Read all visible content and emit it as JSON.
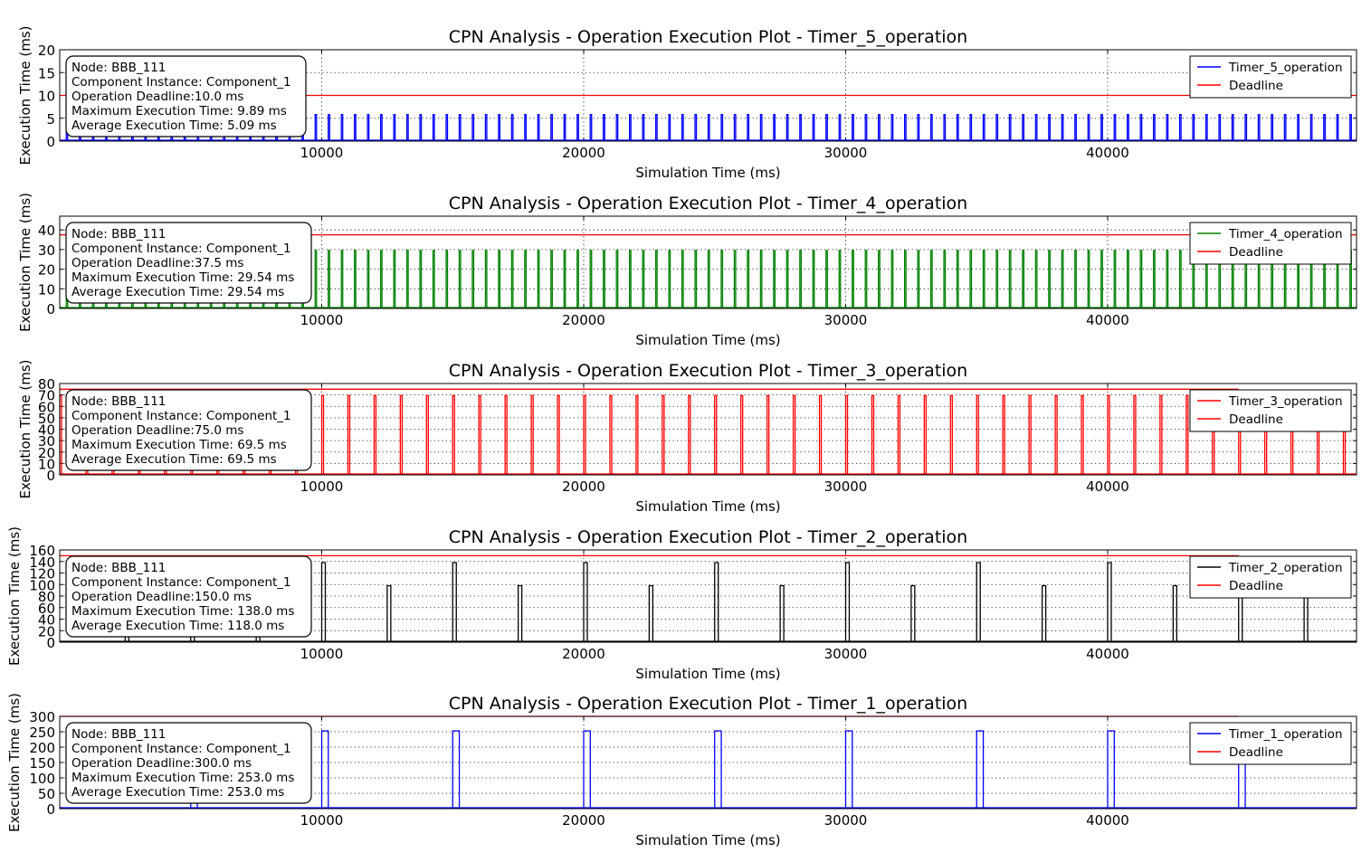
{
  "chart_data": [
    {
      "type": "line",
      "title": "CPN Analysis - Operation Execution Plot - Timer_5_operation",
      "xlabel": "Simulation Time (ms)",
      "ylabel": "Execution Time (ms)",
      "xlim": [
        0,
        49500
      ],
      "ylim": [
        0,
        20
      ],
      "yticks": [
        "0",
        "5",
        "10",
        "15",
        "20"
      ],
      "xticks": [
        "10000",
        "20000",
        "30000",
        "40000"
      ],
      "grid": true,
      "legend_position": "top-right",
      "color": "#0000ff",
      "pulse": {
        "start": 250,
        "period": 500,
        "width": 20,
        "value": 5.8,
        "peak_every": 5000,
        "peak_offset": 10000,
        "peak_value": 9.89
      },
      "deadline": 10.0,
      "deadline_color": "#ff0000",
      "series": [
        {
          "name": "Timer_5_operation",
          "color": "#0000ff"
        },
        {
          "name": "Deadline",
          "color": "#ff0000"
        }
      ],
      "info": [
        "Node: BBB_111",
        "Component Instance: Component_1",
        "Operation Deadline:10.0 ms",
        "Maximum Execution Time: 9.89 ms",
        "Average Execution Time: 5.09 ms"
      ]
    },
    {
      "type": "line",
      "title": "CPN Analysis - Operation Execution Plot - Timer_4_operation",
      "xlabel": "Simulation Time (ms)",
      "ylabel": "Execution Time (ms)",
      "xlim": [
        0,
        49500
      ],
      "ylim": [
        0,
        47
      ],
      "yticks": [
        "0",
        "10",
        "20",
        "30",
        "40"
      ],
      "xticks": [
        "10000",
        "20000",
        "30000",
        "40000"
      ],
      "grid": true,
      "legend_position": "top-right",
      "color": "#008000",
      "pulse": {
        "start": 250,
        "period": 500,
        "width": 30,
        "value": 29.54
      },
      "deadline": 37.5,
      "deadline_color": "#ff0000",
      "series": [
        {
          "name": "Timer_4_operation",
          "color": "#008000"
        },
        {
          "name": "Deadline",
          "color": "#ff0000"
        }
      ],
      "info": [
        "Node: BBB_111",
        "Component Instance: Component_1",
        "Operation Deadline:37.5 ms",
        "Maximum Execution Time: 29.54 ms",
        "Average Execution Time: 29.54 ms"
      ]
    },
    {
      "type": "line",
      "title": "CPN Analysis - Operation Execution Plot - Timer_3_operation",
      "xlabel": "Simulation Time (ms)",
      "ylabel": "Execution Time (ms)",
      "xlim": [
        0,
        49500
      ],
      "ylim": [
        0,
        80
      ],
      "yticks": [
        "0",
        "10",
        "20",
        "30",
        "40",
        "50",
        "60",
        "70",
        "80"
      ],
      "xticks": [
        "10000",
        "20000",
        "30000",
        "40000"
      ],
      "grid": true,
      "legend_position": "top-right",
      "color": "#ff0000",
      "pulse": {
        "start": 0,
        "period": 1000,
        "width": 70,
        "value": 69.5
      },
      "deadline": 75.0,
      "deadline_color": "#ff0000",
      "series": [
        {
          "name": "Timer_3_operation",
          "color": "#ff0000"
        },
        {
          "name": "Deadline",
          "color": "#ff0000"
        }
      ],
      "info": [
        "Node: BBB_111",
        "Component Instance: Component_1",
        "Operation Deadline:75.0 ms",
        "Maximum Execution Time: 69.5 ms",
        "Average Execution Time: 69.5 ms"
      ]
    },
    {
      "type": "line",
      "title": "CPN Analysis - Operation Execution Plot - Timer_2_operation",
      "xlabel": "Simulation Time (ms)",
      "ylabel": "Execution Time (ms)",
      "xlim": [
        0,
        49500
      ],
      "ylim": [
        0,
        160
      ],
      "yticks": [
        "0",
        "20",
        "40",
        "60",
        "80",
        "100",
        "120",
        "140",
        "160"
      ],
      "xticks": [
        "10000",
        "20000",
        "30000",
        "40000"
      ],
      "grid": true,
      "legend_position": "top-right",
      "color": "#000000",
      "pulse_points": [
        {
          "x": 2500,
          "y": 98
        },
        {
          "x": 5000,
          "y": 138
        },
        {
          "x": 7500,
          "y": 98
        },
        {
          "x": 10000,
          "y": 138
        },
        {
          "x": 12500,
          "y": 98
        },
        {
          "x": 15000,
          "y": 138
        },
        {
          "x": 17500,
          "y": 98
        },
        {
          "x": 20000,
          "y": 138
        },
        {
          "x": 22500,
          "y": 98
        },
        {
          "x": 25000,
          "y": 138
        },
        {
          "x": 27500,
          "y": 98
        },
        {
          "x": 30000,
          "y": 138
        },
        {
          "x": 32500,
          "y": 98
        },
        {
          "x": 35000,
          "y": 138
        },
        {
          "x": 37500,
          "y": 98
        },
        {
          "x": 40000,
          "y": 138
        },
        {
          "x": 42500,
          "y": 98
        },
        {
          "x": 45000,
          "y": 138
        },
        {
          "x": 47500,
          "y": 98
        }
      ],
      "pulse_width": 138,
      "deadline": 150.0,
      "deadline_color": "#ff0000",
      "series": [
        {
          "name": "Timer_2_operation",
          "color": "#000000"
        },
        {
          "name": "Deadline",
          "color": "#ff0000"
        }
      ],
      "info": [
        "Node: BBB_111",
        "Component Instance: Component_1",
        "Operation Deadline:150.0 ms",
        "Maximum Execution Time: 138.0 ms",
        "Average Execution Time: 118.0 ms"
      ]
    },
    {
      "type": "line",
      "title": "CPN Analysis - Operation Execution Plot - Timer_1_operation",
      "xlabel": "Simulation Time (ms)",
      "ylabel": "Execution Time (ms)",
      "xlim": [
        0,
        49500
      ],
      "ylim": [
        0,
        300
      ],
      "yticks": [
        "0",
        "50",
        "100",
        "150",
        "200",
        "250",
        "300"
      ],
      "xticks": [
        "10000",
        "20000",
        "30000",
        "40000"
      ],
      "grid": true,
      "legend_position": "top-right",
      "color": "#0000ff",
      "pulse_points": [
        {
          "x": 5000,
          "y": 253
        },
        {
          "x": 10000,
          "y": 253
        },
        {
          "x": 15000,
          "y": 253
        },
        {
          "x": 20000,
          "y": 253
        },
        {
          "x": 25000,
          "y": 253
        },
        {
          "x": 30000,
          "y": 253
        },
        {
          "x": 35000,
          "y": 253
        },
        {
          "x": 40000,
          "y": 253
        },
        {
          "x": 45000,
          "y": 253
        }
      ],
      "pulse_width": 253,
      "deadline": 300.0,
      "deadline_color": "#ff0000",
      "series": [
        {
          "name": "Timer_1_operation",
          "color": "#0000ff"
        },
        {
          "name": "Deadline",
          "color": "#ff0000"
        }
      ],
      "info": [
        "Node: BBB_111",
        "Component Instance: Component_1",
        "Operation Deadline:300.0 ms",
        "Maximum Execution Time: 253.0 ms",
        "Average Execution Time: 253.0 ms"
      ]
    }
  ]
}
